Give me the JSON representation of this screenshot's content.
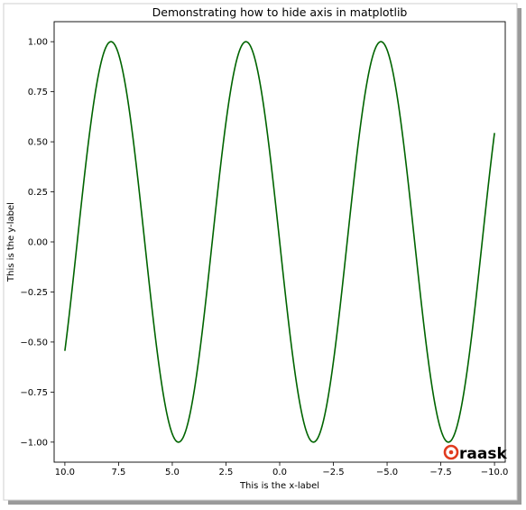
{
  "chart_data": {
    "type": "line",
    "title": "Demonstrating how to hide axis in matplotlib",
    "xlabel": "This is the x-label",
    "ylabel": "This is the y-label",
    "function": "sin(x)",
    "x_range": [
      -10,
      10
    ],
    "xlim": [
      10.5,
      -10.5
    ],
    "ylim": [
      -1.1,
      1.1
    ],
    "x_inverted": true,
    "x_ticks": [
      10.0,
      7.5,
      5.0,
      2.5,
      0.0,
      -2.5,
      -5.0,
      -7.5,
      -10.0
    ],
    "x_tick_labels": [
      "10.0",
      "7.5",
      "5.0",
      "2.5",
      "0.0",
      "−2.5",
      "−5.0",
      "−7.5",
      "−10.0"
    ],
    "y_ticks": [
      1.0,
      0.75,
      0.5,
      0.25,
      0.0,
      -0.25,
      -0.5,
      -0.75,
      -1.0
    ],
    "y_tick_labels": [
      "1.00",
      "0.75",
      "0.50",
      "0.25",
      "0.00",
      "−0.25",
      "−0.50",
      "−0.75",
      "−1.00"
    ],
    "series": [
      {
        "color": "#006400"
      }
    ],
    "grid": false
  },
  "watermark": {
    "text": "Oraask",
    "color": "#e03a1e"
  }
}
